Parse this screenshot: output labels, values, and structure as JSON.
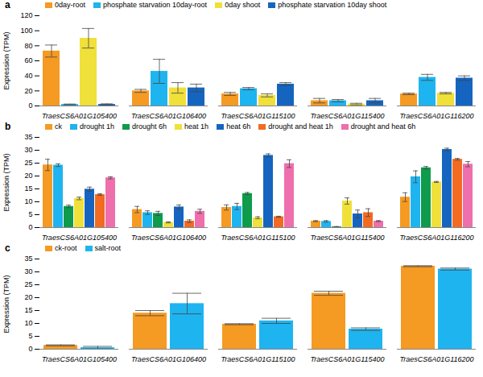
{
  "chart_data": [
    {
      "type": "bar",
      "title": "a",
      "y_label": "Expression (TPM)",
      "legend": "top",
      "categories": [
        "TraesCS6A01G105400",
        "TraesCS6A01G106400",
        "TraesCS6A01G115100",
        "TraesCS6A01G115400",
        "TraesCS6A01G116200"
      ],
      "series": [
        {
          "name": "0day-root",
          "color": "#F59A23",
          "values": [
            73,
            20,
            16,
            7,
            16
          ],
          "errors": [
            8,
            2,
            2,
            3,
            1
          ]
        },
        {
          "name": "phosphate starvation 10day-root",
          "color": "#1EB4F0",
          "values": [
            2,
            46,
            23,
            7,
            38
          ],
          "errors": [
            0.5,
            16,
            1.5,
            1.5,
            4
          ]
        },
        {
          "name": "0day shoot",
          "color": "#F0E03A",
          "values": [
            90,
            24,
            14,
            2.5,
            17
          ],
          "errors": [
            13,
            7,
            2,
            1,
            1
          ]
        },
        {
          "name": "phosphate starvation 10day shoot",
          "color": "#1565C0",
          "values": [
            2,
            24,
            29,
            7,
            37
          ],
          "errors": [
            0.8,
            5,
            2,
            3,
            3
          ]
        }
      ],
      "ylim": [
        0,
        120
      ],
      "yticks": [
        0,
        20,
        40,
        60,
        80,
        100,
        120
      ],
      "grid": false
    },
    {
      "type": "bar",
      "title": "b",
      "y_label": "Expression (TPM)",
      "legend": "top",
      "categories": [
        "TraesCS6A01G105400",
        "TraesCS6A01G106400",
        "TraesCS6A01G115100",
        "TraesCS6A01G115400",
        "TraesCS6A01G116200"
      ],
      "series": [
        {
          "name": "ck",
          "color": "#F59A23",
          "values": [
            24.3,
            7,
            7.8,
            2.5,
            11.8
          ],
          "errors": [
            2.2,
            1.2,
            1,
            0.2,
            1.7
          ]
        },
        {
          "name": "drought 1h",
          "color": "#1EB4F0",
          "values": [
            24.2,
            5.8,
            8.2,
            2.4,
            19.7
          ],
          "errors": [
            0.5,
            0.7,
            1.2,
            0.3,
            2.3
          ]
        },
        {
          "name": "drought 6h",
          "color": "#0E9B4C",
          "values": [
            8.2,
            5.5,
            13.2,
            0.3,
            23.2
          ],
          "errors": [
            0.5,
            0.8,
            0.4,
            0.1,
            0.5
          ]
        },
        {
          "name": "heat 1h",
          "color": "#F0E03A",
          "values": [
            11.3,
            2,
            3.8,
            10.3,
            17.7
          ],
          "errors": [
            0.5,
            0.2,
            0.4,
            1.2,
            0.2
          ]
        },
        {
          "name": "heat 6h",
          "color": "#1565C0",
          "values": [
            14.9,
            8,
            28,
            5.3,
            30.3
          ],
          "errors": [
            0.8,
            0.8,
            0.6,
            1.5,
            0.5
          ]
        },
        {
          "name": "drought and heat 1h",
          "color": "#F26B21",
          "values": [
            12.8,
            2.5,
            4.2,
            5.8,
            26.5
          ],
          "errors": [
            0.3,
            0.5,
            0.2,
            1.5,
            0.3
          ]
        },
        {
          "name": "drought and heat 6h",
          "color": "#EE6FAB",
          "values": [
            19.3,
            6.3,
            24.8,
            2.5,
            24.6
          ],
          "errors": [
            0.4,
            0.8,
            1.5,
            0.2,
            1
          ]
        }
      ],
      "ylim": [
        0,
        35
      ],
      "yticks": [
        0,
        5,
        10,
        15,
        20,
        25,
        30,
        35
      ],
      "grid": false
    },
    {
      "type": "bar",
      "title": "c",
      "y_label": "Expression (TPM)",
      "legend": "top",
      "categories": [
        "TraesCS6A01G105400",
        "TraesCS6A01G106400",
        "TraesCS6A01G115100",
        "TraesCS6A01G115400",
        "TraesCS6A01G116200"
      ],
      "series": [
        {
          "name": "ck-root",
          "color": "#F59A23",
          "values": [
            1.5,
            14,
            9.7,
            21.7,
            32.2
          ],
          "errors": [
            0.2,
            1,
            0.2,
            0.8,
            0.2
          ]
        },
        {
          "name": "salt-root",
          "color": "#1EB4F0",
          "values": [
            0.6,
            17.7,
            11,
            7.8,
            31.1
          ],
          "errors": [
            0.5,
            4,
            1,
            0.5,
            0.4
          ]
        }
      ],
      "ylim": [
        0,
        35
      ],
      "yticks": [
        0,
        5,
        10,
        15,
        20,
        25,
        30,
        35
      ],
      "grid": false
    }
  ]
}
